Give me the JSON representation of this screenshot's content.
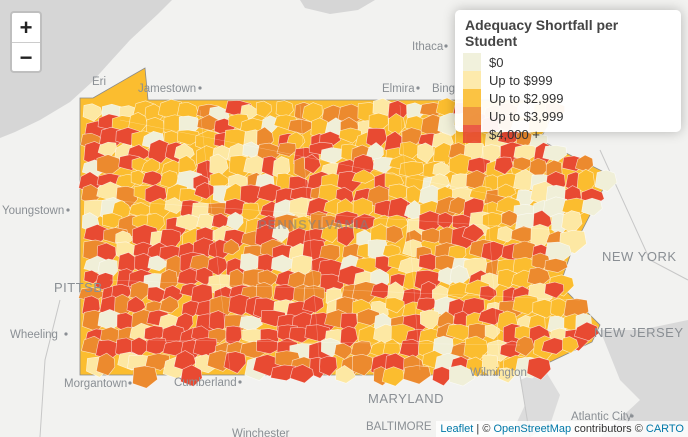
{
  "map": {
    "cities": [
      {
        "id": "ithaca",
        "name": "Ithaca"
      },
      {
        "id": "elmira",
        "name": "Elmira"
      },
      {
        "id": "binghamton",
        "name": "Bing"
      },
      {
        "id": "erie",
        "name": "Eri"
      },
      {
        "id": "jamestown",
        "name": "Jamestown"
      },
      {
        "id": "youngstown",
        "name": "Youngstown"
      },
      {
        "id": "pittsburgh",
        "name": "PITTSB"
      },
      {
        "id": "wheeling",
        "name": "Wheeling"
      },
      {
        "id": "morgantown",
        "name": "Morgantown"
      },
      {
        "id": "cumberland",
        "name": "Cumberland"
      },
      {
        "id": "wilmington",
        "name": "Wilmington"
      },
      {
        "id": "atlanticcity",
        "name": "Atlantic City"
      },
      {
        "id": "winchester",
        "name": "Winchester"
      }
    ],
    "regions": [
      {
        "id": "pennsylvania",
        "name": "PENNSYLVANIA"
      },
      {
        "id": "newyork",
        "name": "NEW YORK"
      },
      {
        "id": "newjersey",
        "name": "NEW JERSEY"
      },
      {
        "id": "maryland",
        "name": "MARYLAND"
      },
      {
        "id": "baltimore",
        "name": "BALTIMORE"
      }
    ]
  },
  "zoom": {
    "in_label": "+",
    "out_label": "−"
  },
  "legend": {
    "title": "Adequacy Shortfall per Student",
    "items": [
      {
        "label": "$0",
        "color": "#f0efd8"
      },
      {
        "label": "Up to $999",
        "color": "#fde8a3"
      },
      {
        "label": "Up to $2,999",
        "color": "#fbbd2f"
      },
      {
        "label": "Up to $3,999",
        "color": "#ec8a2e"
      },
      {
        "label": "$4,000 +",
        "color": "#e84a32"
      }
    ]
  },
  "attribution": {
    "leaflet": "Leaflet",
    "sep1": " | © ",
    "osm": "OpenStreetMap",
    "mid": " contributors © ",
    "carto": "CARTO"
  }
}
